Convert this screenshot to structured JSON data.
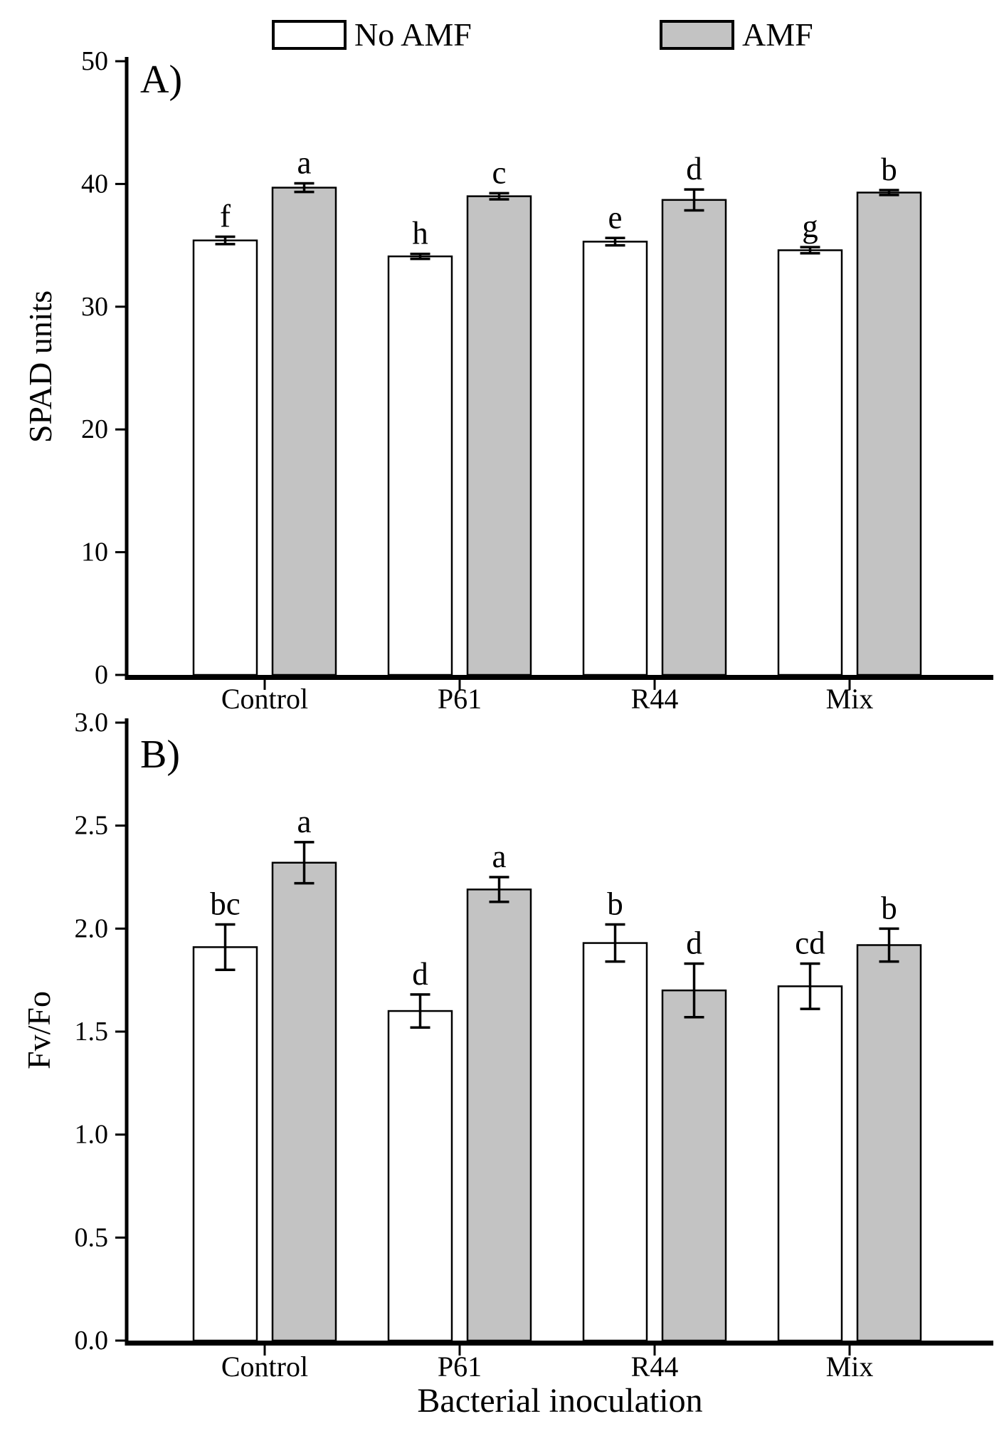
{
  "legend": {
    "items": [
      {
        "label": "No AMF",
        "fill": "#ffffff"
      },
      {
        "label": "AMF",
        "fill": "#c3c3c3"
      }
    ]
  },
  "xlabel": "Bacterial inoculation",
  "colors": {
    "bar_outline": "#000000",
    "axis": "#000000",
    "amf_fill": "#c3c3c3",
    "no_amf_fill": "#ffffff"
  },
  "chart_data": [
    {
      "type": "bar",
      "panel_label": "A)",
      "ylabel": "SPAD units",
      "xlabel": "",
      "categories": [
        "Control",
        "P61",
        "R44",
        "Mix"
      ],
      "ylim": [
        0,
        50
      ],
      "yticks": [
        0,
        10,
        20,
        30,
        40,
        50
      ],
      "ytick_labels": [
        "0",
        "10",
        "20",
        "30",
        "40",
        "50"
      ],
      "grid": false,
      "legend_position": "top",
      "series": [
        {
          "name": "No AMF",
          "fill": "#ffffff",
          "values": [
            35.4,
            34.1,
            35.3,
            34.6
          ],
          "errors": [
            0.3,
            0.2,
            0.3,
            0.25
          ],
          "letters": [
            "f",
            "h",
            "e",
            "g"
          ]
        },
        {
          "name": "AMF",
          "fill": "#c3c3c3",
          "values": [
            39.7,
            39.0,
            38.7,
            39.3
          ],
          "errors": [
            0.35,
            0.25,
            0.85,
            0.2
          ],
          "letters": [
            "a",
            "c",
            "d",
            "b"
          ]
        }
      ]
    },
    {
      "type": "bar",
      "panel_label": "B)",
      "ylabel": "Fv/Fo",
      "xlabel": "Bacterial inoculation",
      "categories": [
        "Control",
        "P61",
        "R44",
        "Mix"
      ],
      "ylim": [
        0,
        3.0
      ],
      "yticks": [
        0,
        0.5,
        1.0,
        1.5,
        2.0,
        2.5,
        3.0
      ],
      "ytick_labels": [
        "0.0",
        "0.5",
        "1.0",
        "1.5",
        "2.0",
        "2.5",
        "3.0"
      ],
      "grid": false,
      "series": [
        {
          "name": "No AMF",
          "fill": "#ffffff",
          "values": [
            1.91,
            1.6,
            1.93,
            1.72
          ],
          "errors": [
            0.11,
            0.08,
            0.09,
            0.11
          ],
          "letters": [
            "bc",
            "d",
            "b",
            "cd"
          ]
        },
        {
          "name": "AMF",
          "fill": "#c3c3c3",
          "values": [
            2.32,
            2.19,
            1.7,
            1.92
          ],
          "errors": [
            0.1,
            0.06,
            0.13,
            0.08
          ],
          "letters": [
            "a",
            "a",
            "d",
            "b"
          ]
        }
      ]
    }
  ]
}
